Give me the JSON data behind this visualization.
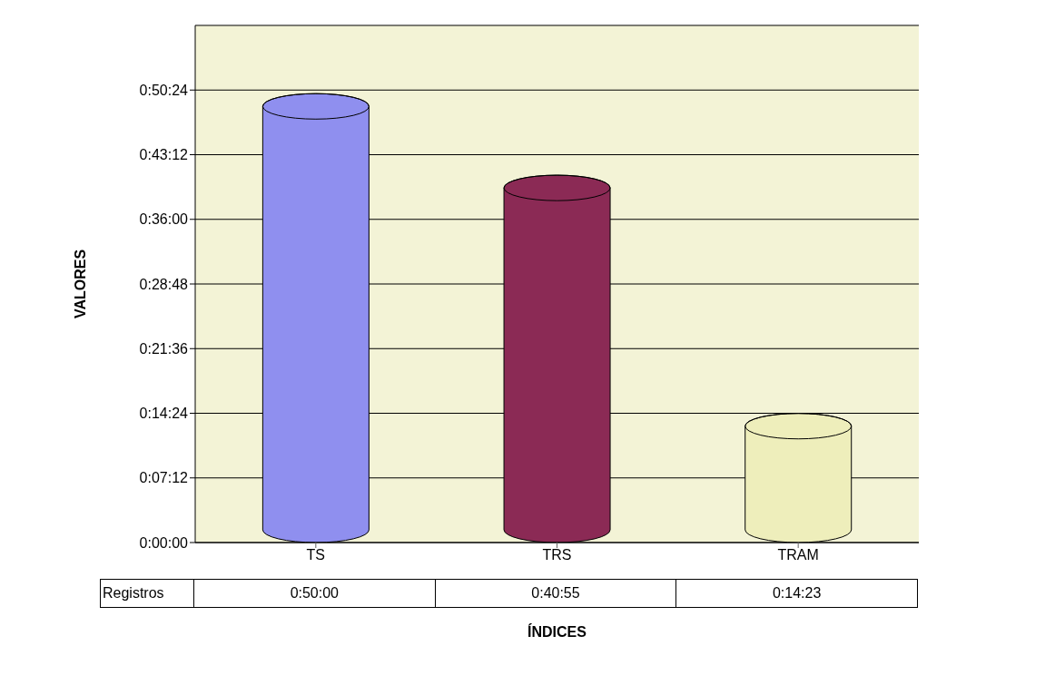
{
  "chart_data": {
    "type": "bar",
    "xlabel": "ÍNDICES",
    "ylabel": "VALORES",
    "categories": [
      "TS",
      "TRS",
      "TRAM"
    ],
    "series": [
      {
        "name": "Registros",
        "values": [
          50,
          40.917,
          14.383
        ],
        "colors": [
          "#8f8fef",
          "#8b2a55",
          "#eeeebb"
        ],
        "value_labels": [
          "0:50:00",
          "0:40:55",
          "0:14:23"
        ]
      }
    ],
    "ylim": [
      0,
      57.6
    ],
    "yticks": [
      {
        "value": 0,
        "label": "0:00:00"
      },
      {
        "value": 7.2,
        "label": "0:07:12"
      },
      {
        "value": 14.4,
        "label": "0:14:24"
      },
      {
        "value": 21.6,
        "label": "0:21:36"
      },
      {
        "value": 28.8,
        "label": "0:28:48"
      },
      {
        "value": 36,
        "label": "0:36:00"
      },
      {
        "value": 43.2,
        "label": "0:43:12"
      },
      {
        "value": 50.4,
        "label": "0:50:24"
      }
    ],
    "grid": "y",
    "legend": false
  }
}
